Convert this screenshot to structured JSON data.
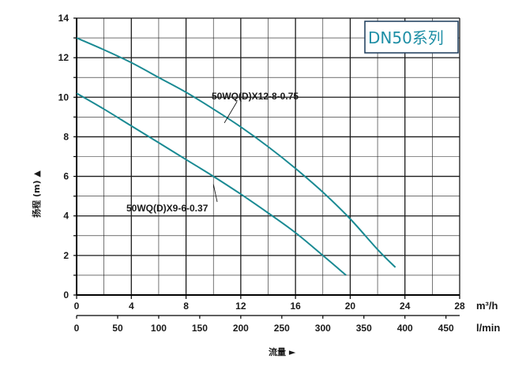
{
  "chart_data": {
    "type": "line",
    "title": "DN50系列",
    "x": {
      "label": "m³/h",
      "range": [
        0,
        28
      ],
      "ticks": [
        0,
        4,
        8,
        12,
        16,
        20,
        24,
        28
      ]
    },
    "x2": {
      "label": "l/min",
      "ticks": [
        0,
        50,
        100,
        150,
        200,
        250,
        300,
        350,
        400,
        450
      ]
    },
    "y": {
      "label": "扬程 (m) ▲",
      "range": [
        0,
        14
      ],
      "ticks": [
        0,
        2,
        4,
        6,
        8,
        10,
        12,
        14
      ]
    },
    "bottom_label": "流量 ►",
    "grid": true,
    "colors": {
      "curve": "#1a8a93",
      "grid": "#1a1a1a",
      "badge_border": "#1a3a5a",
      "badge_text": "#1f8fa6"
    },
    "series": [
      {
        "name": "50WQ(D)X12-8-0.75",
        "x": [
          0,
          2,
          4,
          6,
          8,
          10,
          12,
          14,
          16,
          18,
          20,
          22,
          23.3
        ],
        "y": [
          13.0,
          12.4,
          11.75,
          11.0,
          10.25,
          9.4,
          8.5,
          7.5,
          6.4,
          5.2,
          3.85,
          2.3,
          1.4
        ]
      },
      {
        "name": "50WQ(D)X9-6-0.37",
        "x": [
          0,
          2,
          4,
          6,
          8,
          10,
          12,
          14,
          16,
          18,
          19.7
        ],
        "y": [
          10.2,
          9.4,
          8.55,
          7.7,
          6.85,
          6.0,
          5.1,
          4.15,
          3.15,
          2.0,
          1.0
        ]
      }
    ],
    "annotations": [
      {
        "text": "50WQ(D)X12-8-0.75",
        "points_to": [
          10.8,
          8.7
        ]
      },
      {
        "text": "50WQ(D)X9-6-0.37",
        "points_to": [
          10.0,
          5.6
        ]
      }
    ]
  }
}
